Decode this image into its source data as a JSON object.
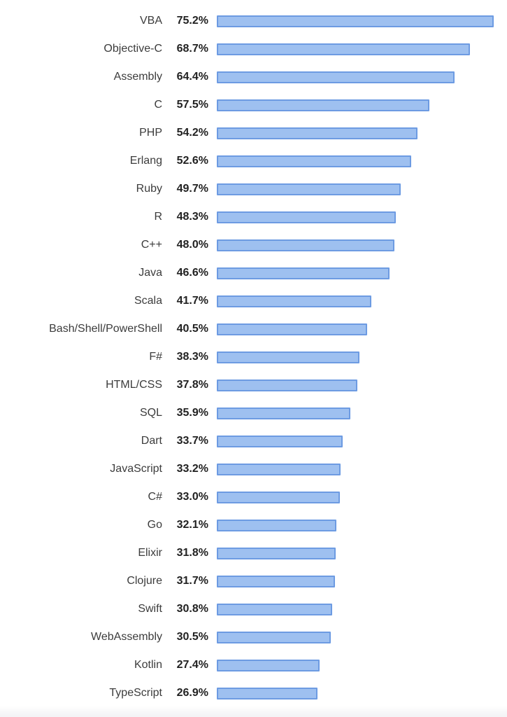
{
  "chart_data": {
    "type": "bar",
    "orientation": "horizontal",
    "categories": [
      "VBA",
      "Objective-C",
      "Assembly",
      "C",
      "PHP",
      "Erlang",
      "Ruby",
      "R",
      "C++",
      "Java",
      "Scala",
      "Bash/Shell/PowerShell",
      "F#",
      "HTML/CSS",
      "SQL",
      "Dart",
      "JavaScript",
      "C#",
      "Go",
      "Elixir",
      "Clojure",
      "Swift",
      "WebAssembly",
      "Kotlin",
      "TypeScript"
    ],
    "values": [
      75.2,
      68.7,
      64.4,
      57.5,
      54.2,
      52.6,
      49.7,
      48.3,
      48.0,
      46.6,
      41.7,
      40.5,
      38.3,
      37.8,
      35.9,
      33.7,
      33.2,
      33.0,
      32.1,
      31.8,
      31.7,
      30.8,
      30.5,
      27.4,
      26.9
    ],
    "value_labels": [
      "75.2%",
      "68.7%",
      "64.4%",
      "57.5%",
      "54.2%",
      "52.6%",
      "49.7%",
      "48.3%",
      "48.0%",
      "46.6%",
      "41.7%",
      "40.5%",
      "38.3%",
      "37.8%",
      "35.9%",
      "33.7%",
      "33.2%",
      "33.0%",
      "32.1%",
      "31.8%",
      "31.7%",
      "30.8%",
      "30.5%",
      "27.4%",
      "26.9%"
    ],
    "unit": "%",
    "xlim": [
      0,
      79.6
    ],
    "grid": false,
    "legend": false
  },
  "styles": {
    "bar_fill": "#9ec0f0",
    "bar_border": "#6d9be2",
    "label_color": "#3c3c3c",
    "value_color": "#222222",
    "background": "#ffffff"
  }
}
